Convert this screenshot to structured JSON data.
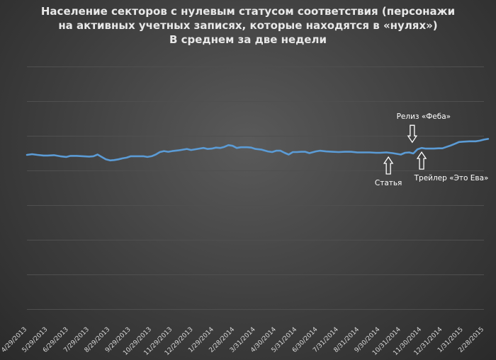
{
  "chart_data": {
    "type": "line",
    "title": "Население секторов с нулевым статусом соответствия (персонажи на активных учетных записях, которые находятся в «нулях»)",
    "subtitle": "В среднем за две недели",
    "title_lines": [
      "Население секторов с нулевым статусом соответствия (персонажи",
      "на активных учетных записях, которые находятся в «нулях»)",
      "В среднем за две недели"
    ],
    "xlabel": "",
    "ylabel": "",
    "grid": true,
    "legend": "none",
    "x_tick_labels": [
      "4/29/2013",
      "5/29/2013",
      "6/29/2013",
      "7/29/2013",
      "8/29/2013",
      "9/29/2013",
      "10/29/2013",
      "11/29/2013",
      "12/29/2013",
      "1/29/2014",
      "2/28/2014",
      "3/31/2014",
      "4/30/2014",
      "5/31/2014",
      "6/30/2014",
      "7/31/2014",
      "8/31/2014",
      "9/30/2014",
      "10/31/2014",
      "11/30/2014",
      "12/31/2014",
      "1/31/2015",
      "2/28/2015"
    ],
    "series": [
      {
        "color": "#5b9bd5",
        "values": [
          [
            0,
            152
          ],
          [
            0.25,
            151
          ],
          [
            0.5,
            152
          ],
          [
            0.8,
            153
          ],
          [
            1.0,
            153
          ],
          [
            1.3,
            152.5
          ],
          [
            1.6,
            154
          ],
          [
            1.9,
            155
          ],
          [
            2.1,
            153.5
          ],
          [
            2.4,
            153.5
          ],
          [
            2.7,
            154
          ],
          [
            3.0,
            154.5
          ],
          [
            3.2,
            154
          ],
          [
            3.4,
            151.5
          ],
          [
            3.6,
            155
          ],
          [
            3.8,
            158.5
          ],
          [
            4.0,
            160
          ],
          [
            4.2,
            159.5
          ],
          [
            4.4,
            158.5
          ],
          [
            4.6,
            157
          ],
          [
            4.8,
            156
          ],
          [
            5.0,
            154
          ],
          [
            5.3,
            154
          ],
          [
            5.6,
            154
          ],
          [
            5.8,
            155
          ],
          [
            6.0,
            154
          ],
          [
            6.2,
            151.5
          ],
          [
            6.4,
            148
          ],
          [
            6.6,
            146.5
          ],
          [
            6.8,
            147.5
          ],
          [
            7.0,
            146.5
          ],
          [
            7.3,
            145.5
          ],
          [
            7.5,
            144.5
          ],
          [
            7.7,
            143.5
          ],
          [
            7.9,
            145
          ],
          [
            8.1,
            144
          ],
          [
            8.3,
            143
          ],
          [
            8.5,
            142
          ],
          [
            8.7,
            143.5
          ],
          [
            8.9,
            143
          ],
          [
            9.1,
            141.5
          ],
          [
            9.3,
            142
          ],
          [
            9.5,
            140.5
          ],
          [
            9.7,
            138
          ],
          [
            9.9,
            139
          ],
          [
            10.1,
            142
          ],
          [
            10.3,
            141
          ],
          [
            10.6,
            141
          ],
          [
            10.8,
            141.5
          ],
          [
            11.0,
            143.5
          ],
          [
            11.3,
            144.5
          ],
          [
            11.6,
            147
          ],
          [
            11.8,
            148
          ],
          [
            12.0,
            146
          ],
          [
            12.2,
            146
          ],
          [
            12.4,
            149
          ],
          [
            12.6,
            151.5
          ],
          [
            12.8,
            148
          ],
          [
            13.0,
            148
          ],
          [
            13.2,
            147.5
          ],
          [
            13.4,
            147.5
          ],
          [
            13.6,
            149.5
          ],
          [
            13.9,
            147
          ],
          [
            14.1,
            146
          ],
          [
            14.4,
            147
          ],
          [
            14.7,
            147.5
          ],
          [
            15.0,
            148
          ],
          [
            15.3,
            147.5
          ],
          [
            15.6,
            147.5
          ],
          [
            15.9,
            148.5
          ],
          [
            16.2,
            148.5
          ],
          [
            16.5,
            148.5
          ],
          [
            16.8,
            149
          ],
          [
            17.0,
            149
          ],
          [
            17.3,
            148.5
          ],
          [
            17.6,
            149.5
          ],
          [
            17.8,
            150.5
          ],
          [
            18.0,
            151.5
          ],
          [
            18.2,
            149
          ],
          [
            18.4,
            148.5
          ],
          [
            18.6,
            150
          ],
          [
            18.8,
            144
          ],
          [
            19.0,
            142
          ],
          [
            19.2,
            143
          ],
          [
            19.4,
            143
          ],
          [
            19.6,
            143
          ],
          [
            19.8,
            142.5
          ],
          [
            20.0,
            142.5
          ],
          [
            20.2,
            140.5
          ],
          [
            20.4,
            138.5
          ],
          [
            20.6,
            136
          ],
          [
            20.8,
            133.5
          ],
          [
            21.0,
            133
          ],
          [
            21.3,
            132.5
          ],
          [
            21.6,
            132.5
          ],
          [
            21.8,
            131.5
          ],
          [
            22.0,
            130
          ],
          [
            22.2,
            129
          ]
        ]
      }
    ],
    "annotations": [
      {
        "label": "Статья",
        "x": 17.4,
        "y": 149,
        "arrow": "up"
      },
      {
        "label": "Релиз «Феба»",
        "x": 18.55,
        "y": 140,
        "arrow": "down"
      },
      {
        "label": "Трейлер «Это Ева»",
        "x": 19.0,
        "y": 142,
        "arrow": "up"
      }
    ]
  }
}
